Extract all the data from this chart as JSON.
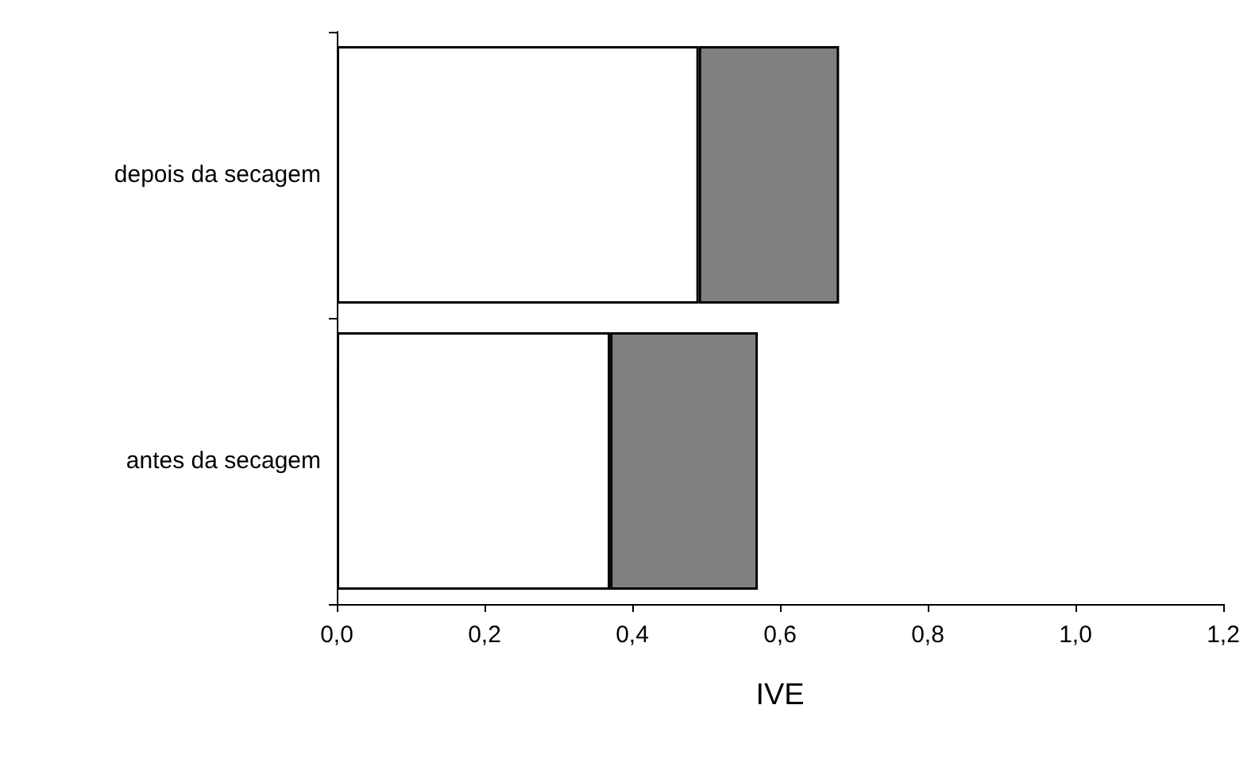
{
  "chart_data": {
    "type": "bar",
    "orientation": "horizontal",
    "stacked": true,
    "xlabel": "IVE",
    "categories": [
      "depois da secagem",
      "antes da secagem"
    ],
    "series": [
      {
        "color": "#ffffff",
        "values": [
          0.49,
          0.37
        ]
      },
      {
        "color": "#808080",
        "values": [
          0.19,
          0.2
        ]
      }
    ],
    "xlim": [
      0,
      1.2
    ],
    "xticks": [
      {
        "value": 0,
        "label": "0,0"
      },
      {
        "value": 0.2,
        "label": "0,2"
      },
      {
        "value": 0.4,
        "label": "0,4"
      },
      {
        "value": 0.6,
        "label": "0,6"
      },
      {
        "value": 0.8,
        "label": "0,8"
      },
      {
        "value": 1.0,
        "label": "1,0"
      },
      {
        "value": 1.2,
        "label": "1,2"
      }
    ],
    "grid": false
  }
}
